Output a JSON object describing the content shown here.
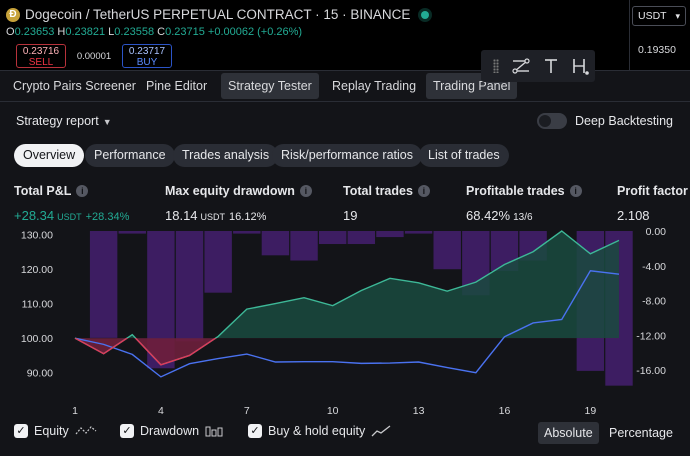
{
  "chart_header": {
    "symbol": "Dogecoin / TetherUS PERPETUAL CONTRACT · 15 · BINANCE",
    "coin_glyph": "Ð",
    "ohlc": {
      "o_label": "O",
      "o": "0.23653",
      "h_label": "H",
      "h": "0.23821",
      "l_label": "L",
      "l": "0.23558",
      "c_label": "C",
      "c": "0.23715",
      "change": "+0.00062 (+0.26%)"
    },
    "sell": {
      "price": "0.23716",
      "label": "SELL"
    },
    "spread": "0.00001",
    "buy": {
      "price": "0.23717",
      "label": "BUY"
    },
    "currency": "USDT",
    "axis_price": "0.19350"
  },
  "panel_tabs": [
    {
      "label": "Crypto Pairs Screener",
      "active": false
    },
    {
      "label": "Pine Editor",
      "active": false
    },
    {
      "label": "Strategy Tester",
      "active": true
    },
    {
      "label": "Replay Trading",
      "active": false
    },
    {
      "label": "Trading Panel",
      "active": false
    }
  ],
  "report": {
    "title": "Strategy report",
    "deep_backtesting_label": "Deep Backtesting",
    "deep_backtesting_on": false
  },
  "sub_tabs": [
    {
      "label": "Overview",
      "active": true
    },
    {
      "label": "Performance",
      "active": false
    },
    {
      "label": "Trades analysis",
      "active": false
    },
    {
      "label": "Risk/performance ratios",
      "active": false
    },
    {
      "label": "List of trades",
      "active": false
    }
  ],
  "metrics": {
    "total_pnl": {
      "label": "Total P&L",
      "value": "+28.34",
      "unit": "USDT",
      "sub": "+28.34%"
    },
    "max_dd": {
      "label": "Max equity drawdown",
      "value": "18.14",
      "unit": "USDT",
      "sub": "16.12%"
    },
    "total_trades": {
      "label": "Total trades",
      "value": "19"
    },
    "profitable": {
      "label": "Profitable trades",
      "value": "68.42%",
      "sub": "13/6"
    },
    "profit_factor": {
      "label": "Profit factor",
      "value": "2.108"
    }
  },
  "chart_data": {
    "type": "line",
    "x_ticks": [
      "1",
      "4",
      "7",
      "10",
      "13",
      "16",
      "19"
    ],
    "y_left_ticks": [
      "130.00",
      "120.00",
      "110.00",
      "100.00",
      "90.00"
    ],
    "y_right_ticks": [
      "0.00",
      "-4.00",
      "-8.00",
      "-12.00",
      "-16.00"
    ],
    "ylim_left": [
      85,
      131
    ],
    "ylim_right": [
      -18.3,
      0
    ],
    "xlim": [
      1,
      20
    ],
    "baseline": 100,
    "colors": {
      "equity": "#3db897",
      "buy_hold": "#4a72f0",
      "drawdown": "#3d1d62",
      "equity_fill_above": "#1a4a3f",
      "equity_fill_below": "#6e1f3c"
    },
    "series": [
      {
        "key": "equity",
        "axis": "left",
        "x": [
          1,
          2,
          3,
          4,
          5,
          6,
          7,
          8,
          9,
          10,
          11,
          12,
          13,
          14,
          15,
          16,
          17,
          18,
          19,
          20
        ],
        "values": [
          100,
          95.5,
          101,
          92.3,
          95,
          100.5,
          108.4,
          110,
          111.7,
          109.4,
          113.8,
          117.3,
          116,
          113.6,
          116.2,
          121.3,
          125,
          131,
          124.4,
          128.3
        ]
      },
      {
        "key": "buy_hold",
        "axis": "left",
        "x": [
          1,
          2,
          3,
          4,
          5,
          6,
          7,
          8,
          9,
          10,
          11,
          12,
          13,
          14,
          15,
          16,
          17,
          18,
          19,
          20
        ],
        "values": [
          100,
          98.2,
          95.3,
          88.8,
          92.6,
          94.1,
          95.4,
          93.1,
          93.2,
          93.2,
          92.7,
          92.8,
          93.1,
          91.5,
          90,
          100.4,
          104.4,
          105.4,
          119.5,
          118.5
        ]
      },
      {
        "key": "drawdown",
        "axis": "right",
        "x": [
          1,
          2,
          3,
          4,
          5,
          6,
          7,
          8,
          9,
          10,
          11,
          12,
          13,
          14,
          15,
          16,
          17,
          18,
          19,
          20
        ],
        "values": [
          0,
          -12.3,
          -0.3,
          -15.8,
          -12.7,
          -7.1,
          -0.3,
          -2.8,
          -3.4,
          -1.5,
          -1.5,
          -0.7,
          -0.3,
          -4.4,
          -7.4,
          -4.6,
          -3.4,
          0,
          -16.1,
          -17.8
        ]
      }
    ]
  },
  "legend": {
    "equity": "Equity",
    "drawdown": "Drawdown",
    "buy_hold": "Buy & hold equity",
    "absolute": "Absolute",
    "percentage": "Percentage"
  }
}
